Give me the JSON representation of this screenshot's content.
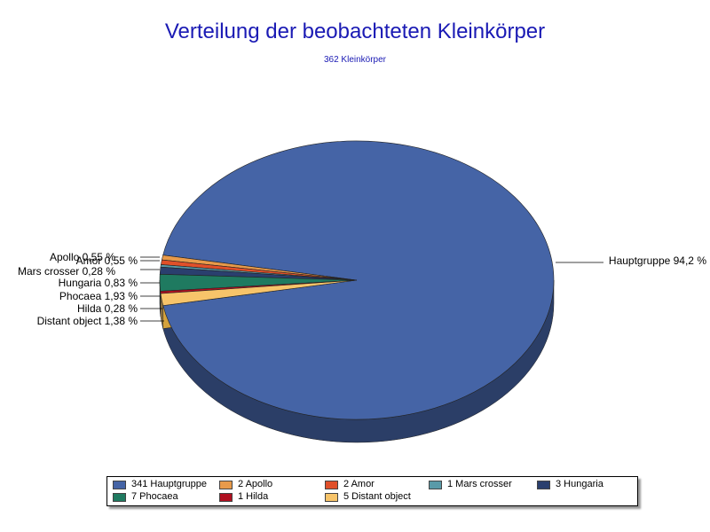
{
  "chart_data": {
    "type": "pie",
    "title": "Verteilung der beobachteten Kleinkörper",
    "subtitle": "362 Kleinkörper",
    "slices": [
      {
        "name": "Hauptgruppe",
        "count": 341,
        "percent_label": "Hauptgruppe 94,2 %",
        "legend_label": "341 Hauptgruppe",
        "color": "#4564a6"
      },
      {
        "name": "Apollo",
        "count": 2,
        "percent_label": "Apollo 0,55 %",
        "legend_label": "2 Apollo",
        "color": "#e89a4a"
      },
      {
        "name": "Amor",
        "count": 2,
        "percent_label": "Amor 0,55 %",
        "legend_label": "2 Amor",
        "color": "#e0502a"
      },
      {
        "name": "Mars crosser",
        "count": 1,
        "percent_label": "Mars crosser 0,28 %",
        "legend_label": "1 Mars crosser",
        "color": "#5a9aa8"
      },
      {
        "name": "Hungaria",
        "count": 3,
        "percent_label": "Hungaria 0,83 %",
        "legend_label": "3 Hungaria",
        "color": "#2a3f6e"
      },
      {
        "name": "Phocaea",
        "count": 7,
        "percent_label": "Phocaea 1,93 %",
        "legend_label": "7 Phocaea",
        "color": "#1f7a60"
      },
      {
        "name": "Hilda",
        "count": 1,
        "percent_label": "Hilda 0,28 %",
        "legend_label": "1 Hilda",
        "color": "#b01020"
      },
      {
        "name": "Distant object",
        "count": 5,
        "percent_label": "Distant object 1,38 %",
        "legend_label": "5 Distant object",
        "color": "#f7c46a"
      }
    ],
    "legend_position": "bottom"
  }
}
